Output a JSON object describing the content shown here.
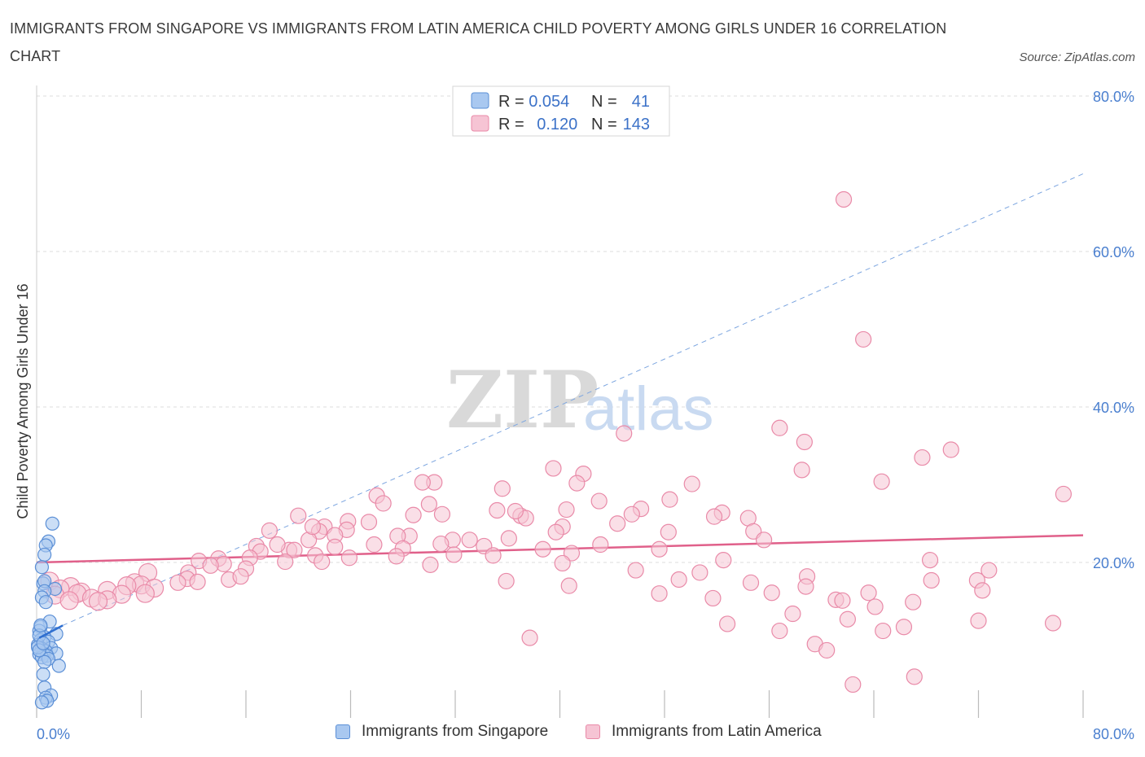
{
  "title": "IMMIGRANTS FROM SINGAPORE VS IMMIGRANTS FROM LATIN AMERICA CHILD POVERTY AMONG GIRLS UNDER 16 CORRELATION CHART",
  "source": "Source: ZipAtlas.com",
  "watermark": {
    "part1": "ZIP",
    "part2": "atlas"
  },
  "colors": {
    "singapore_fill": "#a9c8f0",
    "singapore_stroke": "#5b8fd6",
    "singapore_line": "#2f6fd0",
    "latin_fill": "#f6c4d4",
    "latin_stroke": "#e98aa8",
    "latin_line": "#e0608a",
    "tick_label": "#4a7fcf",
    "grid": "#dddddd"
  },
  "legend_top": {
    "rows": [
      {
        "r_label": "R = ",
        "r_value": "0.054",
        "n_label": "N = ",
        "n_value": "41"
      },
      {
        "r_label": "R = ",
        "r_value": "0.120",
        "n_label": "N = ",
        "n_value": "143"
      }
    ]
  },
  "legend_bottom": {
    "items": [
      {
        "label": "Immigrants from Singapore"
      },
      {
        "label": "Immigrants from Latin America"
      }
    ]
  },
  "chart_data": {
    "type": "scatter",
    "title": "IMMIGRANTS FROM SINGAPORE VS IMMIGRANTS FROM LATIN AMERICA CHILD POVERTY AMONG GIRLS UNDER 16 CORRELATION CHART",
    "xlabel": "",
    "ylabel": "Child Poverty Among Girls Under 16",
    "xlim": [
      0,
      80
    ],
    "ylim": [
      0,
      80
    ],
    "x_tick_labels": [
      "0.0%",
      "80.0%"
    ],
    "y_tick_labels": [
      {
        "value": 80,
        "label": "80.0%"
      },
      {
        "value": 60,
        "label": "60.0%"
      },
      {
        "value": 40,
        "label": "40.0%"
      },
      {
        "value": 20,
        "label": "20.0%"
      }
    ],
    "grid": true,
    "legend_position": "top-center",
    "series": [
      {
        "name": "Immigrants from Singapore",
        "r": 0.054,
        "n": 41,
        "trend": {
          "x": [
            0.2,
            2.0
          ],
          "y": [
            10.3,
            11.9
          ],
          "style": "solid"
        },
        "trend_extension": {
          "x": [
            2.0,
            80.0
          ],
          "y": [
            11.9,
            70.0
          ],
          "style": "dashed"
        },
        "points": [
          [
            1.2,
            25.0
          ],
          [
            0.9,
            22.7
          ],
          [
            0.7,
            22.2
          ],
          [
            0.6,
            21.0
          ],
          [
            0.4,
            19.4
          ],
          [
            0.5,
            17.3
          ],
          [
            0.6,
            17.6
          ],
          [
            1.4,
            16.6
          ],
          [
            0.6,
            16.3
          ],
          [
            0.4,
            15.5
          ],
          [
            0.7,
            14.9
          ],
          [
            1.0,
            12.4
          ],
          [
            0.3,
            11.7
          ],
          [
            0.2,
            11.2
          ],
          [
            1.5,
            10.8
          ],
          [
            0.6,
            10.4
          ],
          [
            0.3,
            10.0
          ],
          [
            0.9,
            9.8
          ],
          [
            0.1,
            9.4
          ],
          [
            1.1,
            9.0
          ],
          [
            0.4,
            8.9
          ],
          [
            0.7,
            8.6
          ],
          [
            0.5,
            8.3
          ],
          [
            1.5,
            8.3
          ],
          [
            0.2,
            8.2
          ],
          [
            0.8,
            8.0
          ],
          [
            0.4,
            7.8
          ],
          [
            0.9,
            7.6
          ],
          [
            0.6,
            7.2
          ],
          [
            1.7,
            6.7
          ],
          [
            0.5,
            5.6
          ],
          [
            0.6,
            3.9
          ],
          [
            1.1,
            2.9
          ],
          [
            0.7,
            2.6
          ],
          [
            0.8,
            2.2
          ],
          [
            0.4,
            2.0
          ],
          [
            0.2,
            10.6
          ],
          [
            0.3,
            11.9
          ],
          [
            0.1,
            9.1
          ],
          [
            0.2,
            8.7
          ],
          [
            0.5,
            9.6
          ]
        ]
      },
      {
        "name": "Immigrants from Latin America",
        "r": 0.12,
        "n": 143,
        "trend": {
          "x": [
            0,
            80
          ],
          "y": [
            20.0,
            23.5
          ],
          "style": "solid"
        },
        "points": [
          [
            61.7,
            66.7
          ],
          [
            63.2,
            48.7
          ],
          [
            44.9,
            36.6
          ],
          [
            56.8,
            37.3
          ],
          [
            58.7,
            35.5
          ],
          [
            69.9,
            34.5
          ],
          [
            67.7,
            33.5
          ],
          [
            39.5,
            32.1
          ],
          [
            58.5,
            31.9
          ],
          [
            41.8,
            31.4
          ],
          [
            30.4,
            30.3
          ],
          [
            29.5,
            30.3
          ],
          [
            64.6,
            30.4
          ],
          [
            41.3,
            30.2
          ],
          [
            50.1,
            30.1
          ],
          [
            35.6,
            29.5
          ],
          [
            78.5,
            28.8
          ],
          [
            26.0,
            28.6
          ],
          [
            48.4,
            28.1
          ],
          [
            26.5,
            27.6
          ],
          [
            43.0,
            27.9
          ],
          [
            30.0,
            27.5
          ],
          [
            40.5,
            26.8
          ],
          [
            46.2,
            26.9
          ],
          [
            35.2,
            26.7
          ],
          [
            52.4,
            26.4
          ],
          [
            20.0,
            26.0
          ],
          [
            28.8,
            26.1
          ],
          [
            37.0,
            26.0
          ],
          [
            45.5,
            26.2
          ],
          [
            51.8,
            25.9
          ],
          [
            54.4,
            25.7
          ],
          [
            37.4,
            25.7
          ],
          [
            31.0,
            26.2
          ],
          [
            23.8,
            25.3
          ],
          [
            25.4,
            25.2
          ],
          [
            44.4,
            25.0
          ],
          [
            40.2,
            24.6
          ],
          [
            22.0,
            24.6
          ],
          [
            17.8,
            24.1
          ],
          [
            23.7,
            24.2
          ],
          [
            21.6,
            24.0
          ],
          [
            39.7,
            23.9
          ],
          [
            48.3,
            23.9
          ],
          [
            54.8,
            24.0
          ],
          [
            22.8,
            23.5
          ],
          [
            28.5,
            23.4
          ],
          [
            36.1,
            23.1
          ],
          [
            55.6,
            22.9
          ],
          [
            31.8,
            22.9
          ],
          [
            27.6,
            23.4
          ],
          [
            30.9,
            22.4
          ],
          [
            34.2,
            22.1
          ],
          [
            43.1,
            22.3
          ],
          [
            20.8,
            22.9
          ],
          [
            16.8,
            22.1
          ],
          [
            19.3,
            21.6
          ],
          [
            28.0,
            21.8
          ],
          [
            18.4,
            22.3
          ],
          [
            17.1,
            21.4
          ],
          [
            38.7,
            21.7
          ],
          [
            22.8,
            22.0
          ],
          [
            19.7,
            21.6
          ],
          [
            27.5,
            20.8
          ],
          [
            31.9,
            21.0
          ],
          [
            21.3,
            20.9
          ],
          [
            34.9,
            20.9
          ],
          [
            40.9,
            21.2
          ],
          [
            47.6,
            21.7
          ],
          [
            16.3,
            20.6
          ],
          [
            13.9,
            20.5
          ],
          [
            23.9,
            20.6
          ],
          [
            12.4,
            20.2
          ],
          [
            21.8,
            20.1
          ],
          [
            68.3,
            20.3
          ],
          [
            19.0,
            20.1
          ],
          [
            52.5,
            20.3
          ],
          [
            14.3,
            19.8
          ],
          [
            13.3,
            19.6
          ],
          [
            40.2,
            19.9
          ],
          [
            30.1,
            19.7
          ],
          [
            45.8,
            19.0
          ],
          [
            16.0,
            19.2
          ],
          [
            50.7,
            18.7
          ],
          [
            8.5,
            18.7
          ],
          [
            11.6,
            18.7
          ],
          [
            14.7,
            17.8
          ],
          [
            11.5,
            17.9
          ],
          [
            49.1,
            17.8
          ],
          [
            72.8,
            19.0
          ],
          [
            15.6,
            18.2
          ],
          [
            10.8,
            17.4
          ],
          [
            58.9,
            18.2
          ],
          [
            35.9,
            17.6
          ],
          [
            68.4,
            17.7
          ],
          [
            12.3,
            17.5
          ],
          [
            7.5,
            17.4
          ],
          [
            1.0,
            17.6
          ],
          [
            8.0,
            17.1
          ],
          [
            6.9,
            17.0
          ],
          [
            2.6,
            16.9
          ],
          [
            9.0,
            16.7
          ],
          [
            1.8,
            16.6
          ],
          [
            5.4,
            16.4
          ],
          [
            3.4,
            16.2
          ],
          [
            71.9,
            17.7
          ],
          [
            54.6,
            17.4
          ],
          [
            58.8,
            16.9
          ],
          [
            40.7,
            17.0
          ],
          [
            3.1,
            16.0
          ],
          [
            6.5,
            15.9
          ],
          [
            56.2,
            16.1
          ],
          [
            63.6,
            16.1
          ],
          [
            47.6,
            16.0
          ],
          [
            1.4,
            15.8
          ],
          [
            4.2,
            15.4
          ],
          [
            72.3,
            16.4
          ],
          [
            5.4,
            15.2
          ],
          [
            8.3,
            16.0
          ],
          [
            2.5,
            15.1
          ],
          [
            4.7,
            15.0
          ],
          [
            67.0,
            14.9
          ],
          [
            61.1,
            15.2
          ],
          [
            51.7,
            15.4
          ],
          [
            57.8,
            13.4
          ],
          [
            64.1,
            14.3
          ],
          [
            61.6,
            15.1
          ],
          [
            62.0,
            12.7
          ],
          [
            72.0,
            12.5
          ],
          [
            77.7,
            12.2
          ],
          [
            52.8,
            12.1
          ],
          [
            64.7,
            11.2
          ],
          [
            56.8,
            11.2
          ],
          [
            66.3,
            11.7
          ],
          [
            59.5,
            9.5
          ],
          [
            37.7,
            10.3
          ],
          [
            60.4,
            8.7
          ],
          [
            62.4,
            4.3
          ],
          [
            67.1,
            5.3
          ],
          [
            21.1,
            24.6
          ],
          [
            33.1,
            22.9
          ],
          [
            25.8,
            22.3
          ],
          [
            36.6,
            26.6
          ]
        ]
      }
    ]
  },
  "y_axis_title": "Child Poverty Among Girls Under 16"
}
